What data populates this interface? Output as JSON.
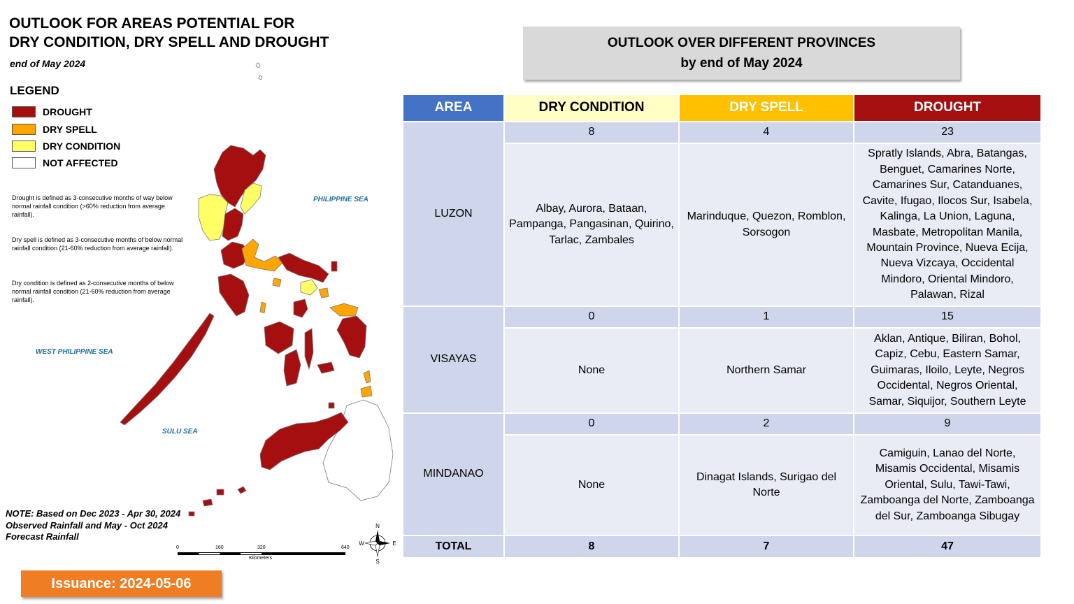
{
  "map": {
    "title_line1": "OUTLOOK FOR AREAS POTENTIAL FOR",
    "title_line2": "DRY CONDITION, DRY SPELL AND DROUGHT",
    "subtitle": "end of May 2024",
    "legend_title": "LEGEND",
    "legend": [
      {
        "label": "DROUGHT",
        "color": "#a50f0f"
      },
      {
        "label": "DRY SPELL",
        "color": "#ffa500"
      },
      {
        "label": "DRY CONDITION",
        "color": "#ffff66"
      },
      {
        "label": "NOT AFFECTED",
        "color": "#ffffff"
      }
    ],
    "definitions": [
      "Drought is defined as 3-consecutive months of way below normal rainfall condition (>60% reduction from average rainfall).",
      "Dry spell is defined as 3-consecutive months of below normal rainfall condition (21-60% reduction from average rainfall).",
      "Dry condition is defined as 2-consecutive months of below normal rainfall condition (21-60% reduction from average rainfall)."
    ],
    "sea_labels": {
      "philippine_sea": "PHILIPPINE SEA",
      "west_philippine_sea": "WEST PHILIPPINE SEA",
      "sulu_sea": "SULU SEA"
    },
    "note_lines": [
      "NOTE: Based on Dec 2023 - Apr 30, 2024",
      "Observed Rainfall and May - Oct 2024",
      "Forecast Rainfall"
    ],
    "scale": {
      "ticks": [
        "0",
        "160",
        "320",
        "640"
      ],
      "unit": "Kilometers"
    },
    "compass": {
      "n": "N",
      "s": "S",
      "e": "E",
      "w": "W"
    },
    "issuance": "Issuance: 2024-05-06"
  },
  "outlook": {
    "title_line1": "OUTLOOK OVER DIFFERENT PROVINCES",
    "title_line2": "by end of May 2024",
    "headers": {
      "area": "AREA",
      "dry_condition": "DRY CONDITION",
      "dry_spell": "DRY SPELL",
      "drought": "DROUGHT"
    },
    "header_colors": {
      "area": "#4472c4",
      "dry_condition": "#ffffc5",
      "dry_spell": "#ffc000",
      "drought": "#a50f0f"
    },
    "rows": [
      {
        "area": "LUZON",
        "dry_condition_count": "8",
        "dry_spell_count": "4",
        "drought_count": "23",
        "dry_condition_list": "Albay, Aurora, Bataan, Pampanga, Pangasinan, Quirino, Tarlac, Zambales",
        "dry_spell_list": "Marinduque, Quezon, Romblon, Sorsogon",
        "drought_list": "Spratly Islands, Abra, Batangas, Benguet, Camarines Norte, Camarines Sur, Catanduanes, Cavite, Ifugao, Ilocos Sur, Isabela, Kalinga, La Union, Laguna, Masbate, Metropolitan Manila, Mountain Province, Nueva Ecija, Nueva Vizcaya, Occidental Mindoro, Oriental Mindoro, Palawan, Rizal"
      },
      {
        "area": "VISAYAS",
        "dry_condition_count": "0",
        "dry_spell_count": "1",
        "drought_count": "15",
        "dry_condition_list": "None",
        "dry_spell_list": "Northern Samar",
        "drought_list": "Aklan, Antique, Biliran, Bohol, Capiz, Cebu, Eastern Samar, Guimaras, Iloilo, Leyte, Negros Occidental, Negros Oriental, Samar, Siquijor, Southern Leyte"
      },
      {
        "area": "MINDANAO",
        "dry_condition_count": "0",
        "dry_spell_count": "2",
        "drought_count": "9",
        "dry_condition_list": "None",
        "dry_spell_list": "Dinagat Islands, Surigao del Norte",
        "drought_list": "Camiguin, Lanao del Norte, Misamis Occidental, Misamis Oriental, Sulu, Tawi-Tawi, Zamboanga del Norte, Zamboanga del Sur, Zamboanga Sibugay"
      }
    ],
    "total": {
      "label": "TOTAL",
      "dry_condition": "8",
      "dry_spell": "7",
      "drought": "47"
    }
  }
}
